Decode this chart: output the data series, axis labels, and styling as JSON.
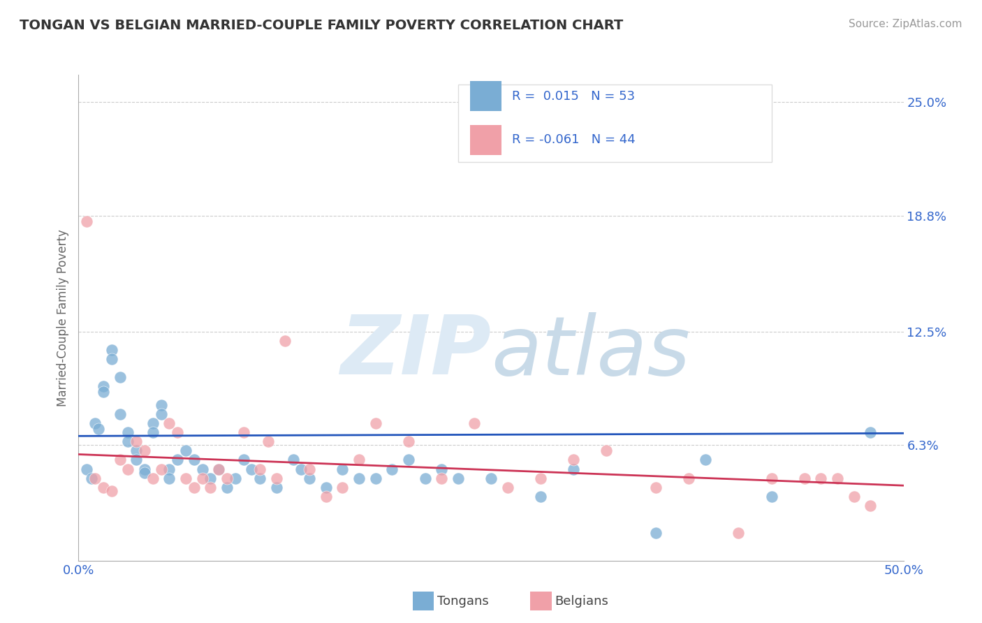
{
  "title": "TONGAN VS BELGIAN MARRIED-COUPLE FAMILY POVERTY CORRELATION CHART",
  "source": "Source: ZipAtlas.com",
  "ylabel": "Married-Couple Family Poverty",
  "xlim": [
    0.0,
    50.0
  ],
  "ylim": [
    0.0,
    26.5
  ],
  "ytick_vals": [
    0.0,
    6.3,
    12.5,
    18.8,
    25.0
  ],
  "ytick_labels": [
    "",
    "6.3%",
    "12.5%",
    "18.8%",
    "25.0%"
  ],
  "tongan_color": "#7aadd4",
  "belgian_color": "#f0a0a8",
  "tongan_r": 0.015,
  "tongan_n": 53,
  "belgian_r": -0.061,
  "belgian_n": 44,
  "legend_r_color": "#3366cc",
  "background_color": "#ffffff",
  "grid_color": "#cccccc",
  "watermark_zip": "ZIP",
  "watermark_atlas": "atlas",
  "watermark_color": "#ddeaf5",
  "tongan_line_color": "#2255bb",
  "belgian_line_color": "#cc3355",
  "tongan_scatter": [
    [
      0.5,
      5.0
    ],
    [
      0.8,
      4.5
    ],
    [
      1.0,
      7.5
    ],
    [
      1.2,
      7.2
    ],
    [
      1.5,
      9.5
    ],
    [
      1.5,
      9.2
    ],
    [
      2.0,
      11.5
    ],
    [
      2.0,
      11.0
    ],
    [
      2.5,
      10.0
    ],
    [
      2.5,
      8.0
    ],
    [
      3.0,
      7.0
    ],
    [
      3.0,
      6.5
    ],
    [
      3.5,
      6.0
    ],
    [
      3.5,
      5.5
    ],
    [
      4.0,
      5.0
    ],
    [
      4.0,
      4.8
    ],
    [
      4.5,
      7.5
    ],
    [
      4.5,
      7.0
    ],
    [
      5.0,
      8.5
    ],
    [
      5.0,
      8.0
    ],
    [
      5.5,
      5.0
    ],
    [
      5.5,
      4.5
    ],
    [
      6.0,
      5.5
    ],
    [
      6.5,
      6.0
    ],
    [
      7.0,
      5.5
    ],
    [
      7.5,
      5.0
    ],
    [
      8.0,
      4.5
    ],
    [
      8.5,
      5.0
    ],
    [
      9.0,
      4.0
    ],
    [
      9.5,
      4.5
    ],
    [
      10.0,
      5.5
    ],
    [
      10.5,
      5.0
    ],
    [
      11.0,
      4.5
    ],
    [
      12.0,
      4.0
    ],
    [
      13.0,
      5.5
    ],
    [
      13.5,
      5.0
    ],
    [
      14.0,
      4.5
    ],
    [
      15.0,
      4.0
    ],
    [
      16.0,
      5.0
    ],
    [
      17.0,
      4.5
    ],
    [
      18.0,
      4.5
    ],
    [
      19.0,
      5.0
    ],
    [
      20.0,
      5.5
    ],
    [
      21.0,
      4.5
    ],
    [
      22.0,
      5.0
    ],
    [
      23.0,
      4.5
    ],
    [
      25.0,
      4.5
    ],
    [
      28.0,
      3.5
    ],
    [
      30.0,
      5.0
    ],
    [
      35.0,
      1.5
    ],
    [
      38.0,
      5.5
    ],
    [
      42.0,
      3.5
    ],
    [
      48.0,
      7.0
    ]
  ],
  "belgian_scatter": [
    [
      0.5,
      18.5
    ],
    [
      1.0,
      4.5
    ],
    [
      1.5,
      4.0
    ],
    [
      2.0,
      3.8
    ],
    [
      2.5,
      5.5
    ],
    [
      3.0,
      5.0
    ],
    [
      3.5,
      6.5
    ],
    [
      4.0,
      6.0
    ],
    [
      4.5,
      4.5
    ],
    [
      5.0,
      5.0
    ],
    [
      5.5,
      7.5
    ],
    [
      6.0,
      7.0
    ],
    [
      6.5,
      4.5
    ],
    [
      7.0,
      4.0
    ],
    [
      7.5,
      4.5
    ],
    [
      8.0,
      4.0
    ],
    [
      8.5,
      5.0
    ],
    [
      9.0,
      4.5
    ],
    [
      10.0,
      7.0
    ],
    [
      11.0,
      5.0
    ],
    [
      11.5,
      6.5
    ],
    [
      12.0,
      4.5
    ],
    [
      12.5,
      12.0
    ],
    [
      14.0,
      5.0
    ],
    [
      15.0,
      3.5
    ],
    [
      16.0,
      4.0
    ],
    [
      17.0,
      5.5
    ],
    [
      18.0,
      7.5
    ],
    [
      20.0,
      6.5
    ],
    [
      22.0,
      4.5
    ],
    [
      24.0,
      7.5
    ],
    [
      26.0,
      4.0
    ],
    [
      28.0,
      4.5
    ],
    [
      30.0,
      5.5
    ],
    [
      32.0,
      6.0
    ],
    [
      35.0,
      4.0
    ],
    [
      37.0,
      4.5
    ],
    [
      40.0,
      1.5
    ],
    [
      42.0,
      4.5
    ],
    [
      44.0,
      4.5
    ],
    [
      45.0,
      4.5
    ],
    [
      46.0,
      4.5
    ],
    [
      47.0,
      3.5
    ],
    [
      48.0,
      3.0
    ]
  ],
  "tongan_line_y0": 6.8,
  "tongan_line_slope": 0.003,
  "belgian_line_y0": 5.8,
  "belgian_line_slope": -0.034
}
